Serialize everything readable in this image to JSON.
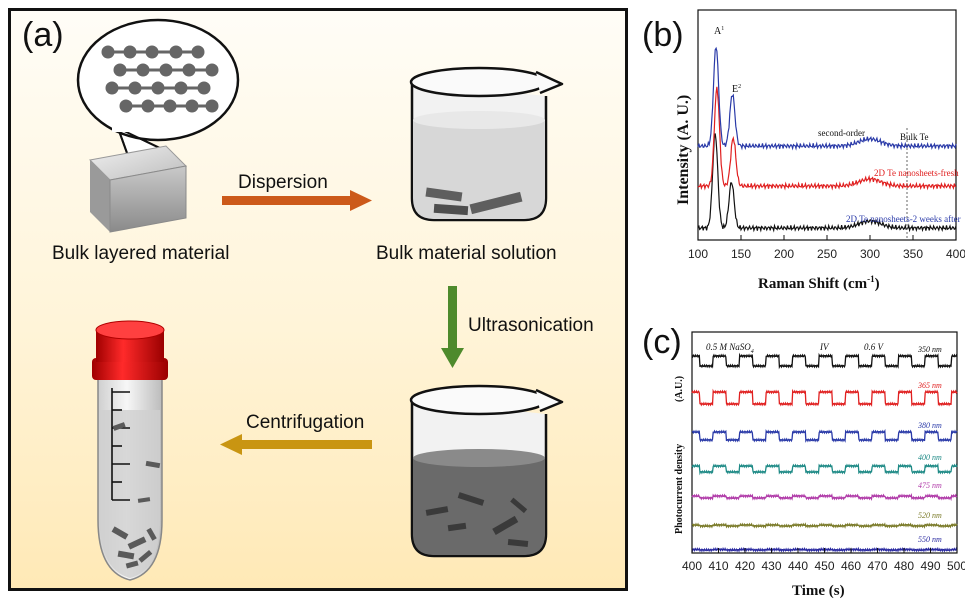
{
  "panel_a": {
    "label": "(a)",
    "bulk_caption": "Bulk layered material",
    "solution_caption": "Bulk material solution",
    "dispersion": "Dispersion",
    "ultrasonication": "Ultrasonication",
    "centrifugation": "Centrifugation"
  },
  "colors": {
    "dispersion_arrow": "#cc5a1a",
    "ultrasonication_arrow": "#4e8a2c",
    "centrifugation_arrow": "#c99512",
    "tube_cap": "#d81010"
  },
  "panel_b": {
    "label": "(b)",
    "ylabel": "Intensity (A. U.)",
    "xlabel": "Raman Shift (cm",
    "xlabel_sup": "-1",
    "xlabel_end": ")",
    "peak_a1": "A",
    "peak_a1_sup": "1",
    "peak_e": "E",
    "peak_e_sup": "2",
    "second_order": "second-order",
    "x_ticks": [
      "100",
      "150",
      "200",
      "250",
      "300",
      "350",
      "400"
    ]
  },
  "panel_c": {
    "label": "(c)",
    "ylabel": "Photocurrent density",
    "ylabel_unit": "(A.U.)",
    "xlabel": "Time (s)",
    "ann_electrolyte": "0.5 M  NaSO",
    "ann_electrolyte_sub": "4",
    "ann_iv": "IV",
    "ann_bias": "0.6 V",
    "x_ticks": [
      "400",
      "410",
      "420",
      "430",
      "440",
      "450",
      "460",
      "470",
      "480",
      "490",
      "500"
    ]
  },
  "chart_data": [
    {
      "type": "line",
      "title": "",
      "xlabel": "Raman Shift (cm-1)",
      "ylabel": "Intensity (A. U.)",
      "xlim": [
        100,
        400
      ],
      "grid": false,
      "series": [
        {
          "name": "Bulk Te",
          "color": "#111111",
          "peaks": [
            120,
            139
          ],
          "offset": 2
        },
        {
          "name": "2D Te nanosheets-fresh",
          "color": "#e02020",
          "peaks": [
            122,
            141
          ],
          "offset": 1
        },
        {
          "name": "2D Te nanosheets-2 weeks after",
          "color": "#2a3aa8",
          "peaks": [
            121,
            140
          ],
          "offset": 0
        }
      ]
    },
    {
      "type": "line",
      "title": "",
      "xlabel": "Time (s)",
      "ylabel": "Photocurrent density (A.U.)",
      "xlim": [
        400,
        500
      ],
      "grid": false,
      "series": [
        {
          "name": "350 nm",
          "color": "#111111",
          "on_off_amplitude": 1.0
        },
        {
          "name": "365 nm",
          "color": "#e02020",
          "on_off_amplitude": 1.2
        },
        {
          "name": "380 nm",
          "color": "#2a3aa8",
          "on_off_amplitude": 0.8
        },
        {
          "name": "400 nm",
          "color": "#1e8a86",
          "on_off_amplitude": 0.6
        },
        {
          "name": "475 nm",
          "color": "#b03aa8",
          "on_off_amplitude": 0.2
        },
        {
          "name": "520 nm",
          "color": "#7a7a28",
          "on_off_amplitude": 0.1
        },
        {
          "name": "550 nm",
          "color": "#2a2aa0",
          "on_off_amplitude": 0.05
        }
      ]
    }
  ]
}
